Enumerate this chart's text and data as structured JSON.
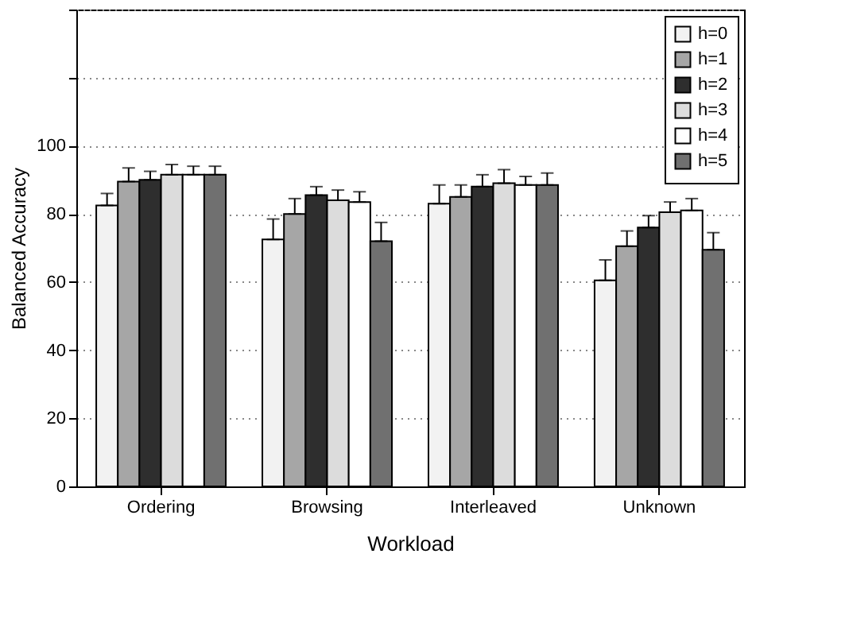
{
  "chart_data": {
    "type": "bar",
    "xlabel": "Workload",
    "ylabel": "Balanced Accuracy",
    "categories": [
      "Ordering",
      "Browsing",
      "Interleaved",
      "Unknown"
    ],
    "series": [
      {
        "name": "h=0",
        "color": "#f2f2f2",
        "values": [
          82.5,
          72.5,
          83,
          60.5
        ],
        "errors": [
          [
            82.5,
            86
          ],
          [
            72.5,
            78.5
          ],
          [
            83,
            88.5
          ],
          [
            60.5,
            66.5
          ]
        ]
      },
      {
        "name": "h=1",
        "color": "#a6a6a6",
        "values": [
          89.5,
          80,
          85,
          70.5
        ],
        "errors": [
          [
            89.5,
            93.5
          ],
          [
            80,
            84.5
          ],
          [
            85,
            88.5
          ],
          [
            70.5,
            75
          ]
        ]
      },
      {
        "name": "h=2",
        "color": "#2e2e2e",
        "values": [
          90,
          85.5,
          88,
          76
        ],
        "errors": [
          [
            90,
            92.5
          ],
          [
            85.5,
            88
          ],
          [
            88,
            91.5
          ],
          [
            76,
            79.5
          ]
        ]
      },
      {
        "name": "h=3",
        "color": "#dcdcdc",
        "values": [
          91.5,
          84,
          89,
          80.5
        ],
        "errors": [
          [
            91.5,
            94.5
          ],
          [
            84,
            87
          ],
          [
            89,
            93
          ],
          [
            80.5,
            83.5
          ]
        ]
      },
      {
        "name": "h=4",
        "color": "#ffffff",
        "values": [
          91.5,
          83.5,
          88.5,
          81
        ],
        "errors": [
          [
            91.5,
            94
          ],
          [
            83.5,
            86.5
          ],
          [
            88.5,
            91
          ],
          [
            81,
            84.5
          ]
        ]
      },
      {
        "name": "h=5",
        "color": "#707070",
        "values": [
          91.5,
          72,
          88.5,
          69.5
        ],
        "errors": [
          [
            91.5,
            94
          ],
          [
            72,
            77.5
          ],
          [
            88.5,
            92
          ],
          [
            69.5,
            74.5
          ]
        ]
      }
    ],
    "ylim": [
      0,
      140
    ],
    "yticks": [
      0,
      20,
      40,
      60,
      80,
      100,
      {
        "value": 120,
        "label": null
      },
      {
        "value": 140,
        "label": null
      }
    ],
    "grid": "y",
    "legend": "top right"
  }
}
